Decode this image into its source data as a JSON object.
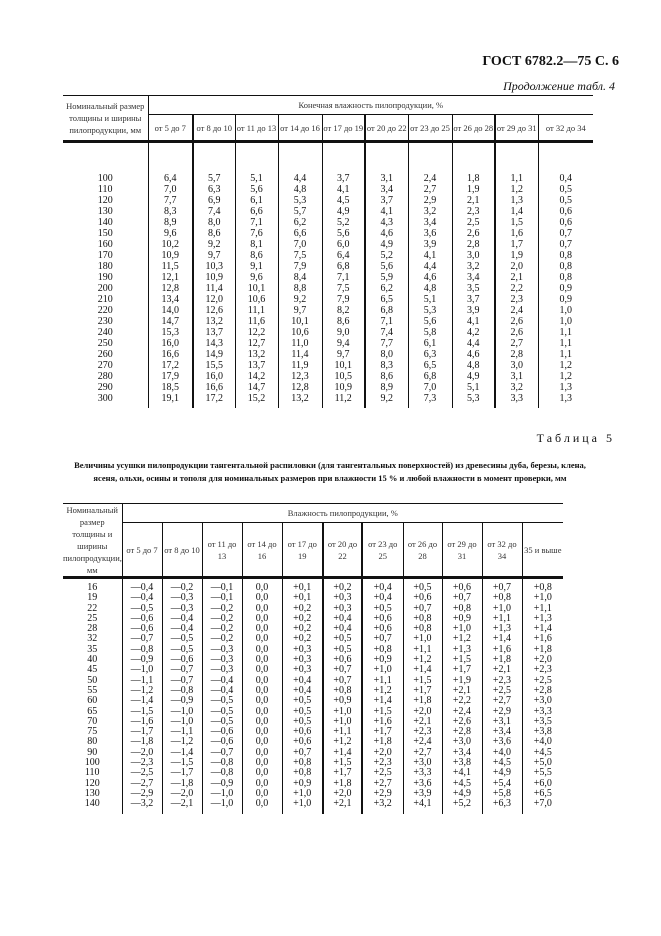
{
  "header": {
    "gost": "ГОСТ 6782.2—75 С. 6",
    "continuation": "Продолжение табл. 4"
  },
  "table4": {
    "row_header": "Номинальный размер толщины и ширины пилопродукции, мм",
    "group_header": "Конечная влажность пилопродукции, %",
    "columns": [
      "от 5 до 7",
      "от 8 до 10",
      "от 11 до 13",
      "от 14 до 16",
      "от 17 до 19",
      "от 20 до 22",
      "от 23 до 25",
      "от 26 до 28",
      "от 29 до 31",
      "от 32 до 34"
    ],
    "rows": [
      [
        "100",
        "6,4",
        "5,7",
        "5,1",
        "4,4",
        "3,7",
        "3,1",
        "2,4",
        "1,8",
        "1,1",
        "0,4"
      ],
      [
        "110",
        "7,0",
        "6,3",
        "5,6",
        "4,8",
        "4,1",
        "3,4",
        "2,7",
        "1,9",
        "1,2",
        "0,5"
      ],
      [
        "120",
        "7,7",
        "6,9",
        "6,1",
        "5,3",
        "4,5",
        "3,7",
        "2,9",
        "2,1",
        "1,3",
        "0,5"
      ],
      [
        "130",
        "8,3",
        "7,4",
        "6,6",
        "5,7",
        "4,9",
        "4,1",
        "3,2",
        "2,3",
        "1,4",
        "0,6"
      ],
      [
        "140",
        "8,9",
        "8,0",
        "7,1",
        "6,2",
        "5,2",
        "4,3",
        "3,4",
        "2,5",
        "1,5",
        "0,6"
      ],
      [
        "150",
        "9,6",
        "8,6",
        "7,6",
        "6,6",
        "5,6",
        "4,6",
        "3,6",
        "2,6",
        "1,6",
        "0,7"
      ],
      [
        "160",
        "10,2",
        "9,2",
        "8,1",
        "7,0",
        "6,0",
        "4,9",
        "3,9",
        "2,8",
        "1,7",
        "0,7"
      ],
      [
        "170",
        "10,9",
        "9,7",
        "8,6",
        "7,5",
        "6,4",
        "5,2",
        "4,1",
        "3,0",
        "1,9",
        "0,8"
      ],
      [
        "180",
        "11,5",
        "10,3",
        "9,1",
        "7,9",
        "6,8",
        "5,6",
        "4,4",
        "3,2",
        "2,0",
        "0,8"
      ],
      [
        "190",
        "12,1",
        "10,9",
        "9,6",
        "8,4",
        "7,1",
        "5,9",
        "4,6",
        "3,4",
        "2,1",
        "0,8"
      ],
      [
        "200",
        "12,8",
        "11,4",
        "10,1",
        "8,8",
        "7,5",
        "6,2",
        "4,8",
        "3,5",
        "2,2",
        "0,9"
      ],
      [
        "210",
        "13,4",
        "12,0",
        "10,6",
        "9,2",
        "7,9",
        "6,5",
        "5,1",
        "3,7",
        "2,3",
        "0,9"
      ],
      [
        "220",
        "14,0",
        "12,6",
        "11,1",
        "9,7",
        "8,2",
        "6,8",
        "5,3",
        "3,9",
        "2,4",
        "1,0"
      ],
      [
        "230",
        "14,7",
        "13,2",
        "11,6",
        "10,1",
        "8,6",
        "7,1",
        "5,6",
        "4,1",
        "2,6",
        "1,0"
      ],
      [
        "240",
        "15,3",
        "13,7",
        "12,2",
        "10,6",
        "9,0",
        "7,4",
        "5,8",
        "4,2",
        "2,6",
        "1,1"
      ],
      [
        "250",
        "16,0",
        "14,3",
        "12,7",
        "11,0",
        "9,4",
        "7,7",
        "6,1",
        "4,4",
        "2,7",
        "1,1"
      ],
      [
        "260",
        "16,6",
        "14,9",
        "13,2",
        "11,4",
        "9,7",
        "8,0",
        "6,3",
        "4,6",
        "2,8",
        "1,1"
      ],
      [
        "270",
        "17,2",
        "15,5",
        "13,7",
        "11,9",
        "10,1",
        "8,3",
        "6,5",
        "4,8",
        "3,0",
        "1,2"
      ],
      [
        "280",
        "17,9",
        "16,0",
        "14,2",
        "12,3",
        "10,5",
        "8,6",
        "6,8",
        "4,9",
        "3,1",
        "1,2"
      ],
      [
        "290",
        "18,5",
        "16,6",
        "14,7",
        "12,8",
        "10,9",
        "8,9",
        "7,0",
        "5,1",
        "3,2",
        "1,3"
      ],
      [
        "300",
        "19,1",
        "17,2",
        "15,2",
        "13,2",
        "11,2",
        "9,2",
        "7,3",
        "5,3",
        "3,3",
        "1,3"
      ]
    ]
  },
  "table5": {
    "label": "Таблица 5",
    "caption": "Величины усушки пилопродукции тангентальной распиловки (для тангентальных поверхностей) из древесины дуба, березы, клена, ясеня, ольхи, осины и тополя для номинальных размеров при влажности 15 % и любой влажности в момент проверки, мм",
    "row_header": "Номинальный размер толщины и ширины пилопродукции, мм",
    "group_header": "Влажность пилопродукции, %",
    "columns": [
      "от 5 до 7",
      "от 8 до 10",
      "от 11 до 13",
      "от 14 до 16",
      "от 17 до 19",
      "от 20 до 22",
      "от 23 до 25",
      "от 26 до 28",
      "от 29 до 31",
      "от 32 до 34",
      "35 и выше"
    ],
    "rows": [
      [
        "16",
        "—0,4",
        "—0,2",
        "—0,1",
        "0,0",
        "+0,1",
        "+0,2",
        "+0,4",
        "+0,5",
        "+0,6",
        "+0,7",
        "+0,8"
      ],
      [
        "19",
        "—0,4",
        "—0,3",
        "—0,1",
        "0,0",
        "+0,1",
        "+0,3",
        "+0,4",
        "+0,6",
        "+0,7",
        "+0,8",
        "+1,0"
      ],
      [
        "22",
        "—0,5",
        "—0,3",
        "—0,2",
        "0,0",
        "+0,2",
        "+0,3",
        "+0,5",
        "+0,7",
        "+0,8",
        "+1,0",
        "+1,1"
      ],
      [
        "25",
        "—0,6",
        "—0,4",
        "—0,2",
        "0,0",
        "+0,2",
        "+0,4",
        "+0,6",
        "+0,8",
        "+0,9",
        "+1,1",
        "+1,3"
      ],
      [
        "28",
        "—0,6",
        "—0,4",
        "—0,2",
        "0,0",
        "+0,2",
        "+0,4",
        "+0,6",
        "+0,8",
        "+1,0",
        "+1,3",
        "+1,4"
      ],
      [
        "32",
        "—0,7",
        "—0,5",
        "—0,2",
        "0,0",
        "+0,2",
        "+0,5",
        "+0,7",
        "+1,0",
        "+1,2",
        "+1,4",
        "+1,6"
      ],
      [
        "35",
        "—0,8",
        "—0,5",
        "—0,3",
        "0,0",
        "+0,3",
        "+0,5",
        "+0,8",
        "+1,1",
        "+1,3",
        "+1,6",
        "+1,8"
      ],
      [
        "40",
        "—0,9",
        "—0,6",
        "—0,3",
        "0,0",
        "+0,3",
        "+0,6",
        "+0,9",
        "+1,2",
        "+1,5",
        "+1,8",
        "+2,0"
      ],
      [
        "45",
        "—1,0",
        "—0,7",
        "—0,3",
        "0,0",
        "+0,3",
        "+0,7",
        "+1,0",
        "+1,4",
        "+1,7",
        "+2,1",
        "+2,3"
      ],
      [
        "50",
        "—1,1",
        "—0,7",
        "—0,4",
        "0,0",
        "+0,4",
        "+0,7",
        "+1,1",
        "+1,5",
        "+1,9",
        "+2,3",
        "+2,5"
      ],
      [
        "55",
        "—1,2",
        "—0,8",
        "—0,4",
        "0,0",
        "+0,4",
        "+0,8",
        "+1,2",
        "+1,7",
        "+2,1",
        "+2,5",
        "+2,8"
      ],
      [
        "60",
        "—1,4",
        "—0,9",
        "—0,5",
        "0,0",
        "+0,5",
        "+0,9",
        "+1,4",
        "+1,8",
        "+2,2",
        "+2,7",
        "+3,0"
      ],
      [
        "65",
        "—1,5",
        "—1,0",
        "—0,5",
        "0,0",
        "+0,5",
        "+1,0",
        "+1,5",
        "+2,0",
        "+2,4",
        "+2,9",
        "+3,3"
      ],
      [
        "70",
        "—1,6",
        "—1,0",
        "—0,5",
        "0,0",
        "+0,5",
        "+1,0",
        "+1,6",
        "+2,1",
        "+2,6",
        "+3,1",
        "+3,5"
      ],
      [
        "75",
        "—1,7",
        "—1,1",
        "—0,6",
        "0,0",
        "+0,6",
        "+1,1",
        "+1,7",
        "+2,3",
        "+2,8",
        "+3,4",
        "+3,8"
      ],
      [
        "80",
        "—1,8",
        "—1,2",
        "—0,6",
        "0,0",
        "+0,6",
        "+1,2",
        "+1,8",
        "+2,4",
        "+3,0",
        "+3,6",
        "+4,0"
      ],
      [
        "90",
        "—2,0",
        "—1,4",
        "—0,7",
        "0,0",
        "+0,7",
        "+1,4",
        "+2,0",
        "+2,7",
        "+3,4",
        "+4,0",
        "+4,5"
      ],
      [
        "100",
        "—2,3",
        "—1,5",
        "—0,8",
        "0,0",
        "+0,8",
        "+1,5",
        "+2,3",
        "+3,0",
        "+3,8",
        "+4,5",
        "+5,0"
      ],
      [
        "110",
        "—2,5",
        "—1,7",
        "—0,8",
        "0,0",
        "+0,8",
        "+1,7",
        "+2,5",
        "+3,3",
        "+4,1",
        "+4,9",
        "+5,5"
      ],
      [
        "120",
        "—2,7",
        "—1,8",
        "—0,9",
        "0,0",
        "+0,9",
        "+1,8",
        "+2,7",
        "+3,6",
        "+4,5",
        "+5,4",
        "+6,0"
      ],
      [
        "130",
        "—2,9",
        "—2,0",
        "—1,0",
        "0,0",
        "+1,0",
        "+2,0",
        "+2,9",
        "+3,9",
        "+4,9",
        "+5,8",
        "+6,5"
      ],
      [
        "140",
        "—3,2",
        "—2,1",
        "—1,0",
        "0,0",
        "+1,0",
        "+2,1",
        "+3,2",
        "+4,1",
        "+5,2",
        "+6,3",
        "+7,0"
      ]
    ]
  }
}
